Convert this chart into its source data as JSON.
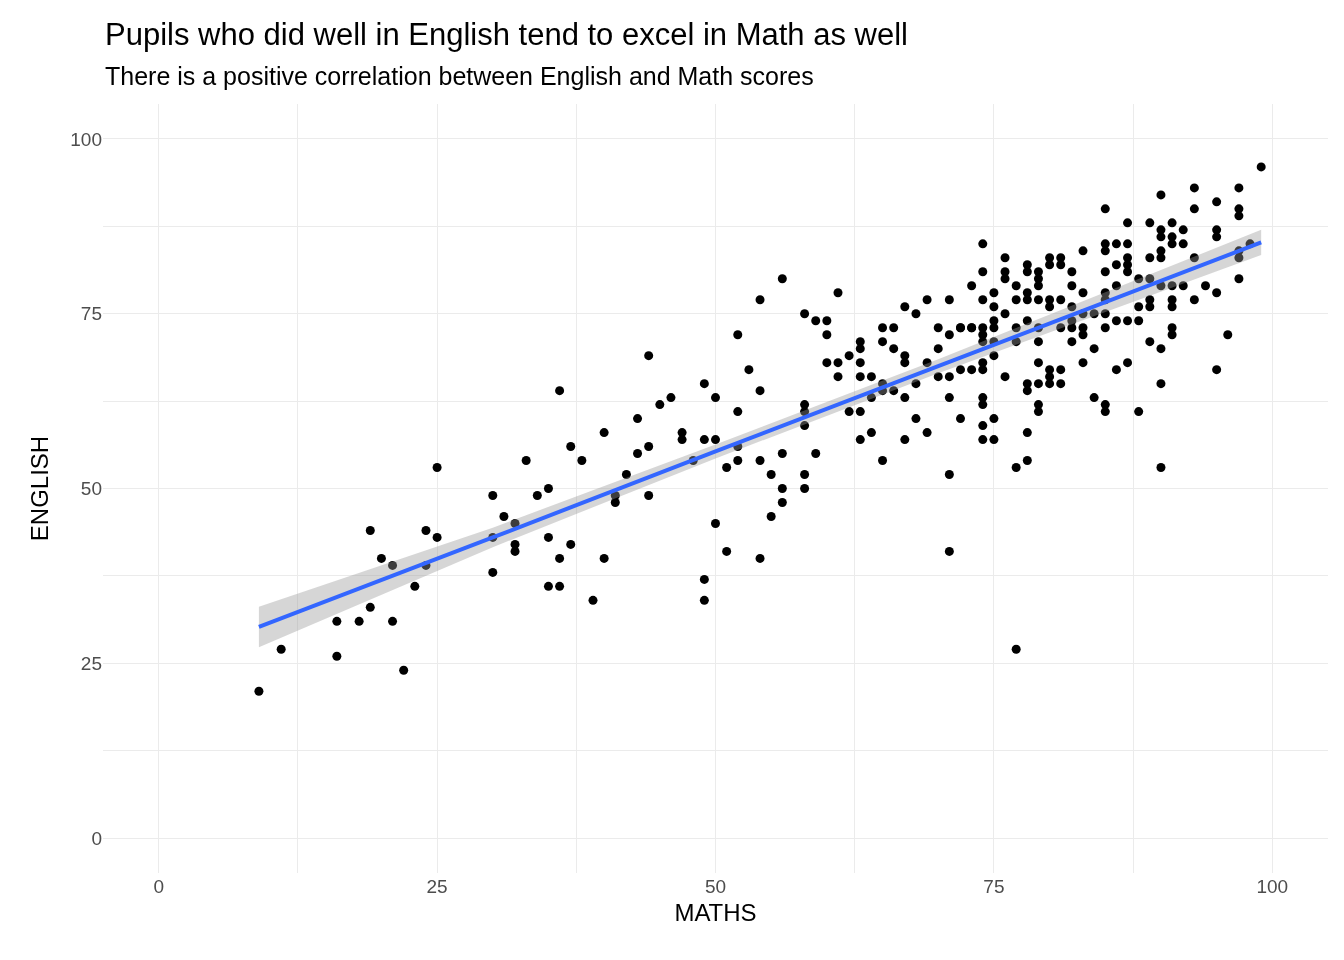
{
  "chart_data": {
    "type": "scatter",
    "title": "Pupils who did well in English tend to excel in Math as well",
    "subtitle": "There is a positive correlation between English and Math scores",
    "xlabel": "MATHS",
    "ylabel": "ENGLISH",
    "xlim": [
      -5,
      105
    ],
    "ylim": [
      -5,
      105
    ],
    "xticks": [
      0,
      {
        "value": 12.5,
        "label": null
      },
      25,
      {
        "value": 37.5,
        "label": null
      },
      50,
      {
        "value": 62.5,
        "label": null
      },
      75,
      {
        "value": 87.5,
        "label": null
      },
      100
    ],
    "yticks": [
      0,
      {
        "value": 12.5,
        "label": null
      },
      25,
      {
        "value": 37.5,
        "label": null
      },
      50,
      {
        "value": 62.5,
        "label": null
      },
      75,
      {
        "value": 87.5,
        "label": null
      },
      100
    ],
    "grid": true,
    "series": [
      {
        "color": "#000000",
        "marker": "circle",
        "x": [
          9,
          11,
          16,
          16,
          18,
          19,
          19,
          20,
          21,
          21,
          22,
          23,
          24,
          24,
          25,
          25,
          30,
          30,
          30,
          31,
          32,
          32,
          32,
          33,
          34,
          35,
          35,
          35,
          36,
          36,
          36,
          37,
          37,
          38,
          39,
          40,
          40,
          41,
          41,
          42,
          43,
          43,
          44,
          44,
          44,
          45,
          46,
          47,
          47,
          48,
          49,
          49,
          49,
          49,
          50,
          50,
          50,
          51,
          51,
          52,
          52,
          52,
          52,
          53,
          54,
          54,
          54,
          54,
          55,
          55,
          56,
          56,
          56,
          56,
          58,
          58,
          58,
          58,
          58,
          58,
          59,
          59,
          60,
          60,
          60,
          61,
          61,
          61,
          62,
          62,
          63,
          63,
          63,
          63,
          63,
          63,
          64,
          64,
          64,
          65,
          65,
          65,
          65,
          65,
          66,
          66,
          66,
          67,
          67,
          67,
          67,
          67,
          68,
          68,
          68,
          69,
          69,
          69,
          70,
          70,
          70,
          71,
          71,
          71,
          71,
          71,
          71,
          72,
          72,
          72,
          72,
          73,
          73,
          73,
          73,
          74,
          74,
          74,
          74,
          74,
          74,
          74,
          74,
          74,
          74,
          74,
          74,
          75,
          75,
          75,
          75,
          75,
          75,
          75,
          75,
          76,
          76,
          76,
          76,
          76,
          77,
          77,
          77,
          77,
          77,
          77,
          78,
          78,
          78,
          78,
          78,
          78,
          78,
          78,
          78,
          79,
          79,
          79,
          79,
          79,
          79,
          79,
          79,
          79,
          79,
          80,
          80,
          80,
          80,
          80,
          80,
          80,
          81,
          81,
          81,
          81,
          81,
          81,
          82,
          82,
          82,
          82,
          82,
          82,
          83,
          83,
          83,
          83,
          83,
          83,
          84,
          84,
          84,
          85,
          85,
          85,
          85,
          85,
          85,
          85,
          85,
          85,
          85,
          86,
          86,
          86,
          86,
          86,
          87,
          87,
          87,
          87,
          87,
          87,
          87,
          88,
          88,
          88,
          88,
          89,
          89,
          89,
          89,
          89,
          89,
          90,
          90,
          90,
          90,
          90,
          90,
          90,
          90,
          90,
          91,
          91,
          91,
          91,
          91,
          91,
          91,
          91,
          92,
          92,
          92,
          93,
          93,
          93,
          93,
          94,
          95,
          95,
          95,
          95,
          95,
          96,
          97,
          97,
          97,
          97,
          97,
          97,
          98,
          99
        ],
        "values": [
          21,
          27,
          31,
          26,
          31,
          44,
          33,
          40,
          39,
          31,
          24,
          36,
          44,
          39,
          43,
          53,
          49,
          43,
          38,
          46,
          45,
          42,
          41,
          54,
          49,
          50,
          43,
          36,
          36,
          40,
          64,
          42,
          56,
          54,
          34,
          58,
          40,
          49,
          48,
          52,
          55,
          60,
          69,
          56,
          49,
          62,
          63,
          58,
          57,
          54,
          65,
          57,
          37,
          34,
          57,
          63,
          45,
          53,
          41,
          72,
          54,
          61,
          56,
          67,
          77,
          64,
          54,
          40,
          52,
          46,
          50,
          48,
          55,
          80,
          75,
          62,
          61,
          59,
          52,
          50,
          55,
          74,
          74,
          72,
          68,
          78,
          68,
          66,
          69,
          61,
          71,
          70,
          68,
          66,
          61,
          57,
          66,
          63,
          58,
          73,
          71,
          65,
          64,
          54,
          73,
          70,
          64,
          69,
          68,
          63,
          57,
          76,
          65,
          60,
          75,
          77,
          68,
          58,
          70,
          66,
          73,
          77,
          72,
          66,
          63,
          52,
          41,
          73,
          67,
          60,
          73,
          79,
          73,
          67,
          73,
          85,
          81,
          77,
          73,
          72,
          71,
          68,
          67,
          63,
          62,
          59,
          57,
          78,
          76,
          74,
          73,
          71,
          69,
          60,
          57,
          83,
          81,
          80,
          75,
          66,
          79,
          77,
          73,
          71,
          53,
          27,
          82,
          81,
          78,
          77,
          74,
          65,
          64,
          58,
          54,
          81,
          80,
          79,
          77,
          73,
          71,
          68,
          65,
          62,
          61,
          83,
          82,
          77,
          76,
          67,
          66,
          65,
          83,
          82,
          77,
          73,
          67,
          65,
          81,
          79,
          76,
          74,
          73,
          71,
          84,
          78,
          75,
          73,
          72,
          68,
          75,
          70,
          63,
          90,
          85,
          84,
          81,
          78,
          77,
          75,
          73,
          62,
          61,
          85,
          82,
          79,
          74,
          67,
          88,
          85,
          83,
          82,
          81,
          74,
          68,
          80,
          76,
          74,
          61,
          88,
          83,
          80,
          77,
          76,
          71,
          92,
          87,
          86,
          84,
          83,
          79,
          70,
          65,
          53,
          88,
          86,
          85,
          79,
          77,
          76,
          73,
          72,
          87,
          85,
          79,
          93,
          90,
          83,
          77,
          79,
          91,
          87,
          86,
          78,
          67,
          72,
          93,
          90,
          89,
          84,
          83,
          80,
          85,
          96
        ]
      },
      {
        "type": "line",
        "marker": "none",
        "color": "#3366ff",
        "x": [
          9,
          30,
          50,
          70,
          99
        ],
        "values": [
          30.2,
          43.0,
          55.3,
          67.5,
          85.2
        ],
        "lower": [
          27.3,
          41.6,
          54.3,
          66.5,
          83.4
        ],
        "upper": [
          33.1,
          44.4,
          56.3,
          68.5,
          87.0
        ]
      }
    ]
  }
}
